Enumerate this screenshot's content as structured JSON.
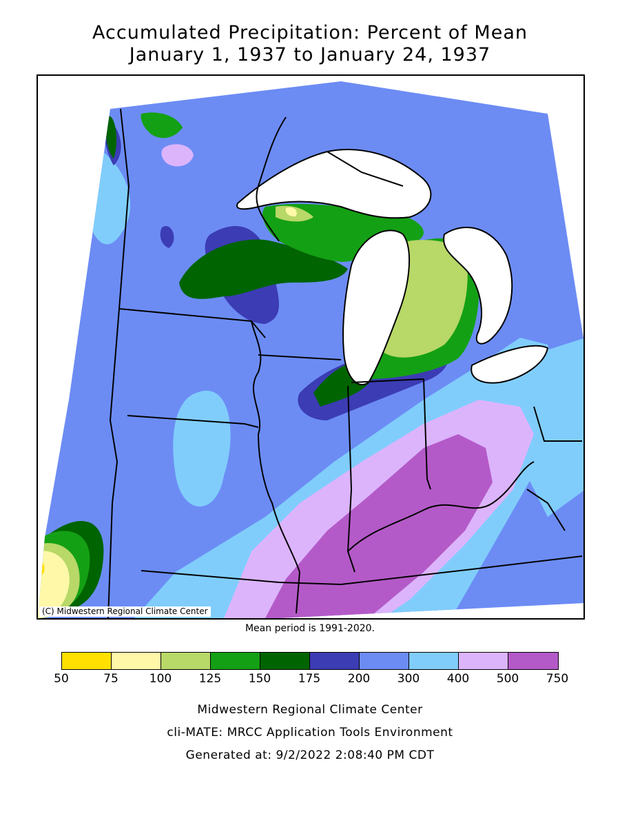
{
  "title": {
    "line1": "Accumulated Precipitation: Percent of Mean",
    "line2": "January 1, 1937 to January 24, 1937"
  },
  "map": {
    "copyright": "(C) Midwestern Regional Climate Center",
    "region": "Upper Midwest / Great Lakes",
    "water_color": "#ffffff",
    "boundary_color": "#000000"
  },
  "mean_period": "Mean period is 1991-2020.",
  "legend": {
    "ticks": [
      "50",
      "75",
      "100",
      "125",
      "150",
      "175",
      "200",
      "300",
      "400",
      "500",
      "750"
    ],
    "colors": [
      "#ffe000",
      "#fff8a8",
      "#b8d868",
      "#14a014",
      "#006400",
      "#3c3cb4",
      "#6c8cf4",
      "#80cdfc",
      "#dcb4fc",
      "#b45ac8"
    ]
  },
  "footer": {
    "line1": "Midwestern Regional Climate Center",
    "line2": "cli-MATE: MRCC Application Tools Environment",
    "line3": "Generated at: 9/2/2022 2:08:40 PM CDT"
  }
}
